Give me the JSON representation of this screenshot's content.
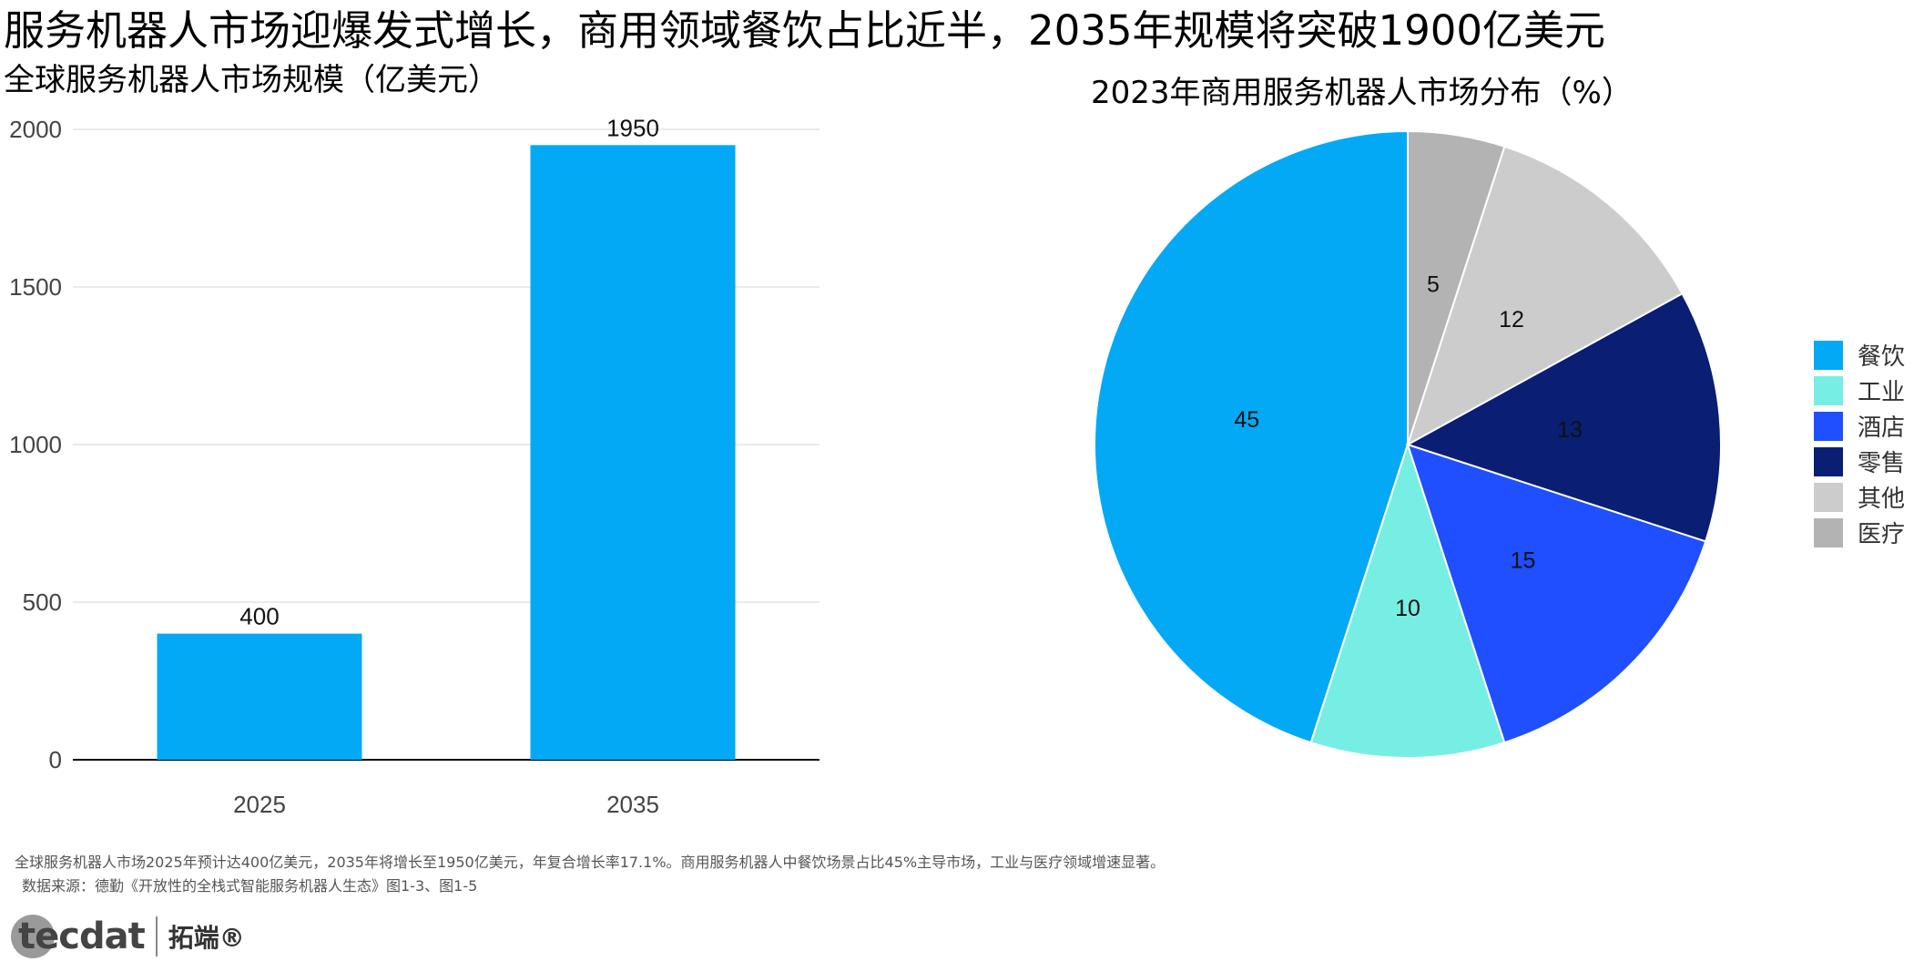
{
  "headline": "服务机器人市场迎爆发式增长，商用领域餐饮占比近半，2035年规模将突破1900亿美元",
  "caption": "全球服务机器人市场2025年预计达400亿美元，2035年将增长至1950亿美元，年复合增长率17.1%。商用服务机器人中餐饮场景占比45%主导市场，工业与医疗领域增速显著。",
  "source": "数据来源：德勤《开放性的全栈式智能服务机器人生态》图1-3、图1-5",
  "logo": {
    "word": "tecdat",
    "cn": "拓端®"
  },
  "chart_data": [
    {
      "type": "bar",
      "title": "全球服务机器人市场规模（亿美元）",
      "categories": [
        "2025",
        "2035"
      ],
      "values": [
        400,
        1950
      ],
      "ylim": [
        0,
        2000
      ],
      "yticks": [
        0,
        500,
        1000,
        1500,
        2000
      ],
      "grid": true,
      "bar_color": "#03A9F4"
    },
    {
      "type": "pie",
      "title": "2023年商用服务机器人市场分布（%）",
      "labels": [
        "餐饮",
        "工业",
        "酒店",
        "零售",
        "其他",
        "医疗"
      ],
      "values": [
        45,
        10,
        15,
        13,
        12,
        5
      ],
      "colors": [
        "#03A9F4",
        "#76EEE4",
        "#1F4FFF",
        "#0A1E73",
        "#CCCCCC",
        "#B3B3B3"
      ],
      "legend": "right"
    }
  ]
}
